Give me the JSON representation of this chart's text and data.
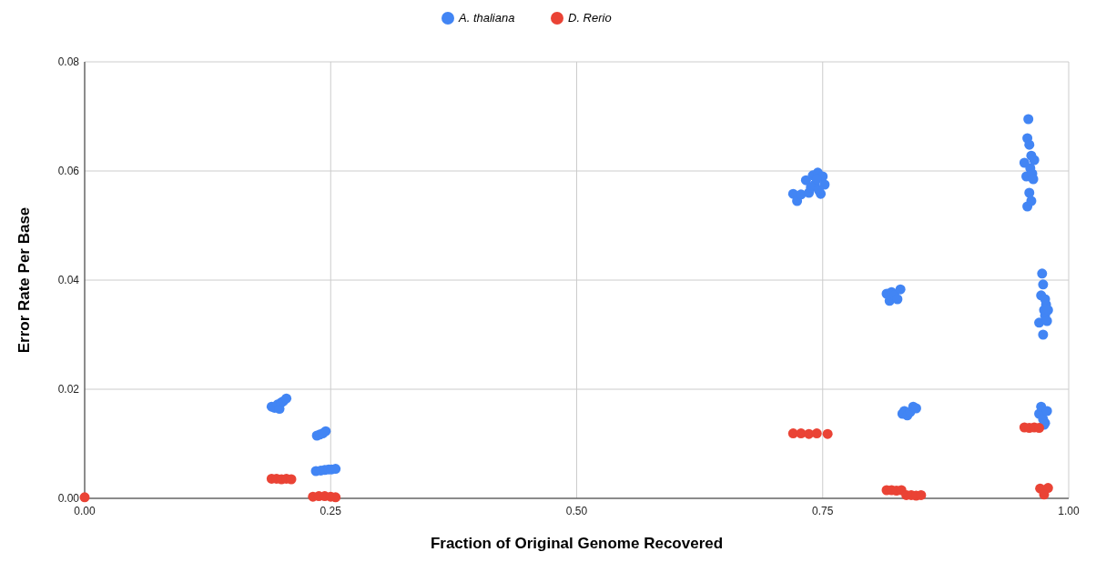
{
  "chart_data": {
    "type": "scatter",
    "xlabel": "Fraction of Original Genome Recovered",
    "ylabel": "Error Rate Per Base",
    "xlim": [
      0,
      1
    ],
    "ylim": [
      0,
      0.08
    ],
    "xticks": [
      {
        "value": 0,
        "label": "0.00"
      },
      {
        "value": 0.25,
        "label": "0.25"
      },
      {
        "value": 0.5,
        "label": "0.50"
      },
      {
        "value": 0.75,
        "label": "0.75"
      },
      {
        "value": 1,
        "label": "1.00"
      }
    ],
    "yticks": [
      {
        "value": 0,
        "label": "0.00"
      },
      {
        "value": 0.02,
        "label": "0.02"
      },
      {
        "value": 0.04,
        "label": "0.04"
      },
      {
        "value": 0.06,
        "label": "0.06"
      },
      {
        "value": 0.08,
        "label": "0.08"
      }
    ],
    "grid": true,
    "legend": "top",
    "marker": "circle",
    "series": [
      {
        "name": "A. thaliana",
        "color": "#4285f4",
        "x": [
          0.19,
          0.193,
          0.196,
          0.198,
          0.2,
          0.202,
          0.205,
          0.236,
          0.239,
          0.242,
          0.245,
          0.235,
          0.24,
          0.244,
          0.248,
          0.251,
          0.255,
          0.72,
          0.724,
          0.728,
          0.733,
          0.736,
          0.74,
          0.742,
          0.745,
          0.748,
          0.75,
          0.752,
          0.738,
          0.744,
          0.746,
          0.815,
          0.818,
          0.82,
          0.823,
          0.826,
          0.829,
          0.831,
          0.833,
          0.836,
          0.839,
          0.842,
          0.845,
          0.955,
          0.957,
          0.958,
          0.959,
          0.96,
          0.961,
          0.962,
          0.963,
          0.964,
          0.96,
          0.958,
          0.962,
          0.965,
          0.97,
          0.972,
          0.973,
          0.974,
          0.975,
          0.976,
          0.977,
          0.978,
          0.979,
          0.974,
          0.976,
          0.97,
          0.972,
          0.974,
          0.976,
          0.978,
          0.975
        ],
        "values": [
          0.0168,
          0.0166,
          0.0172,
          0.0164,
          0.0176,
          0.0178,
          0.0183,
          0.0115,
          0.0117,
          0.0119,
          0.0123,
          0.005,
          0.0051,
          0.0052,
          0.0053,
          0.0053,
          0.0054,
          0.0558,
          0.0545,
          0.0557,
          0.0583,
          0.056,
          0.0592,
          0.0575,
          0.0597,
          0.0558,
          0.059,
          0.0575,
          0.057,
          0.0585,
          0.0565,
          0.0375,
          0.0362,
          0.0378,
          0.0372,
          0.0365,
          0.0383,
          0.0155,
          0.016,
          0.0152,
          0.0158,
          0.0168,
          0.0165,
          0.0615,
          0.059,
          0.066,
          0.0695,
          0.0648,
          0.0605,
          0.0628,
          0.0595,
          0.0585,
          0.056,
          0.0535,
          0.0545,
          0.062,
          0.0322,
          0.0372,
          0.0412,
          0.0392,
          0.0345,
          0.0335,
          0.0355,
          0.0325,
          0.0345,
          0.03,
          0.0365,
          0.0155,
          0.0168,
          0.0145,
          0.0138,
          0.016,
          0.0135
        ]
      },
      {
        "name": "D. Rerio",
        "color": "#ea4335",
        "x": [
          0.0,
          0.19,
          0.195,
          0.2,
          0.205,
          0.21,
          0.232,
          0.238,
          0.244,
          0.25,
          0.255,
          0.72,
          0.728,
          0.736,
          0.744,
          0.755,
          0.815,
          0.82,
          0.825,
          0.83,
          0.835,
          0.84,
          0.845,
          0.85,
          0.955,
          0.96,
          0.965,
          0.97,
          0.971,
          0.979,
          0.975
        ],
        "values": [
          0.0002,
          0.0036,
          0.0036,
          0.0035,
          0.0036,
          0.0035,
          0.0003,
          0.0004,
          0.0004,
          0.0003,
          0.0002,
          0.0119,
          0.0119,
          0.0118,
          0.0119,
          0.0118,
          0.0015,
          0.0015,
          0.0014,
          0.0015,
          0.0006,
          0.0006,
          0.0005,
          0.0006,
          0.013,
          0.0129,
          0.013,
          0.0129,
          0.0018,
          0.0019,
          0.0007
        ]
      }
    ]
  }
}
